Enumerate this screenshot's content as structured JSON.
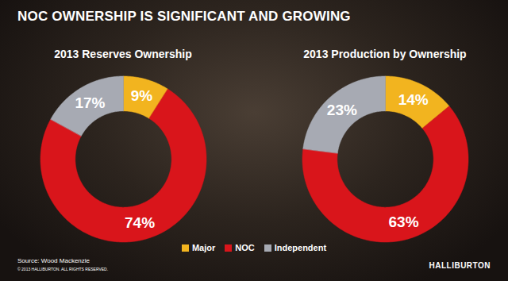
{
  "header": {
    "title": "NOC OWNERSHIP IS SIGNIFICANT AND GROWING"
  },
  "chart_data": [
    {
      "type": "pie",
      "title": "2013 Reserves Ownership",
      "categories": [
        "Major",
        "NOC",
        "Independent"
      ],
      "values": [
        9,
        74,
        17
      ],
      "value_labels": [
        "9%",
        "74%",
        "17%"
      ],
      "colors": [
        "#f2b41f",
        "#d9151b",
        "#a7aab3"
      ],
      "data_labels": true,
      "legend": "bottom"
    },
    {
      "type": "pie",
      "title": "2013 Production by Ownership",
      "categories": [
        "Major",
        "NOC",
        "Independent"
      ],
      "values": [
        14,
        63,
        23
      ],
      "value_labels": [
        "14%",
        "63%",
        "23%"
      ],
      "colors": [
        "#f2b41f",
        "#d9151b",
        "#a7aab3"
      ],
      "data_labels": true
    }
  ],
  "footer": {
    "source": "Source: Wood Mackenzie",
    "copyright": "© 2013 HALLIBURTON. ALL RIGHTS RESERVED.",
    "logo": "HALLIBURTON"
  }
}
